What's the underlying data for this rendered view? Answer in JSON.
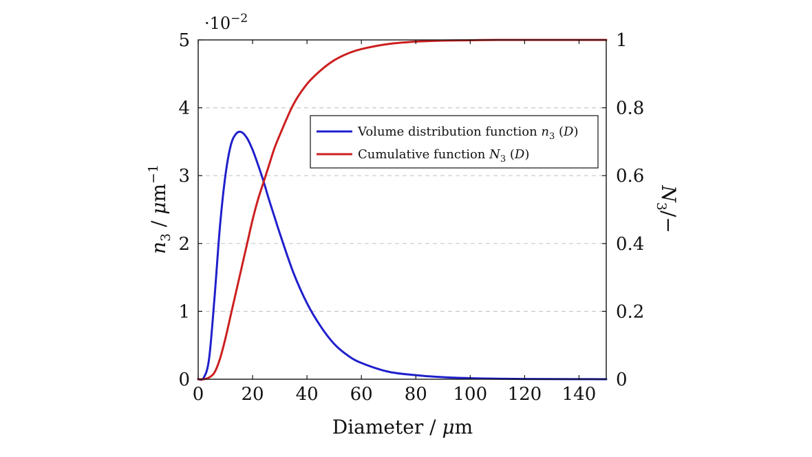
{
  "chart_data": {
    "type": "line",
    "title": "",
    "xlabel": "Diameter / μm",
    "xlabel_parts": {
      "pre": "Diameter / ",
      "mu": "μ",
      "post": "m"
    },
    "y_left_label": "n3 / μm−1",
    "y_left_label_parts": {
      "var": "n",
      "sub": "3",
      "sep": " / ",
      "mu": "μ",
      "unit": "m",
      "sup": "−1"
    },
    "y_right_label": "N3/−",
    "y_right_label_parts": {
      "var": "N",
      "sub": "3",
      "post": "/−"
    },
    "y_left_multiplier": "·10−2",
    "y_left_multiplier_parts": {
      "base": "·10",
      "exp": "−2"
    },
    "xlim": [
      0,
      150
    ],
    "y_left_lim": [
      0,
      5
    ],
    "y_right_lim": [
      0,
      1
    ],
    "x_ticks": [
      0,
      20,
      40,
      60,
      80,
      100,
      120,
      140
    ],
    "y_left_ticks": [
      0,
      1,
      2,
      3,
      4,
      5
    ],
    "y_right_ticks": [
      "0",
      "0.2",
      "0.4",
      "0.6",
      "0.8",
      "1"
    ],
    "y_right_tick_values": [
      0,
      0.2,
      0.4,
      0.6,
      0.8,
      1
    ],
    "grid": "horizontal-dashed",
    "legend_position": "upper-right-inside",
    "series": [
      {
        "name": "Volume distribution function n3 (D)",
        "legend_parts": {
          "pre": "Volume distribution function ",
          "var": "n",
          "sub": "3",
          "open": " (",
          "arg": "D",
          "close": ")"
        },
        "axis": "left",
        "color": "#1f1fcc",
        "x": [
          0,
          2,
          4,
          6,
          8,
          10,
          12,
          14,
          16,
          18,
          20,
          22,
          24,
          26,
          28,
          30,
          35,
          40,
          45,
          50,
          55,
          60,
          70,
          80,
          90,
          100,
          110,
          120,
          130,
          140,
          150
        ],
        "y": [
          0,
          0.02,
          0.3,
          1.2,
          2.25,
          3.0,
          3.45,
          3.62,
          3.64,
          3.55,
          3.38,
          3.16,
          2.92,
          2.65,
          2.4,
          2.15,
          1.57,
          1.12,
          0.78,
          0.52,
          0.35,
          0.24,
          0.11,
          0.06,
          0.03,
          0.015,
          0.008,
          0.004,
          0.002,
          0.001,
          0.0
        ]
      },
      {
        "name": "Cumulative function N3 (D)",
        "legend_parts": {
          "pre": "Cumulative function ",
          "var": "N",
          "sub": "3",
          "open": " (",
          "arg": "D",
          "close": ")"
        },
        "axis": "right",
        "color": "#cc1f1f",
        "x": [
          0,
          2,
          4,
          6,
          8,
          10,
          12,
          14,
          16,
          18,
          20,
          22,
          24,
          26,
          28,
          30,
          35,
          40,
          45,
          50,
          55,
          60,
          70,
          80,
          90,
          100,
          110,
          120,
          130,
          140,
          150
        ],
        "y": [
          0,
          0,
          0.005,
          0.02,
          0.06,
          0.12,
          0.19,
          0.26,
          0.33,
          0.4,
          0.47,
          0.53,
          0.58,
          0.63,
          0.68,
          0.72,
          0.81,
          0.87,
          0.91,
          0.94,
          0.96,
          0.973,
          0.988,
          0.995,
          0.998,
          0.999,
          1.0,
          1.0,
          1.0,
          1.0,
          1.0
        ]
      }
    ]
  }
}
